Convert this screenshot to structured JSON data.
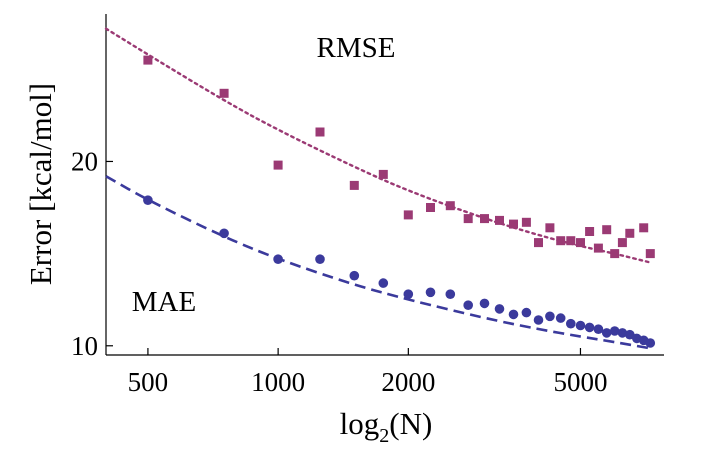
{
  "chart_data": {
    "type": "scatter",
    "xscale": "log",
    "xlim": [
      400,
      7800
    ],
    "ylim": [
      9.5,
      28
    ],
    "ylabel": "Error [kcal/mol]",
    "xlabel": {
      "prefix": "log",
      "subscript": "2",
      "suffix": "(N)"
    },
    "x_ticks": [
      {
        "value": 500,
        "label": "500"
      },
      {
        "value": 1000,
        "label": "1000"
      },
      {
        "value": 2000,
        "label": "2000"
      },
      {
        "value": 5000,
        "label": "5000"
      }
    ],
    "y_ticks": [
      {
        "value": 10,
        "label": "10"
      },
      {
        "value": 20,
        "label": "20"
      }
    ],
    "annotations": [
      {
        "text": "RMSE",
        "series": "RMSE"
      },
      {
        "text": "MAE",
        "series": "MAE"
      }
    ],
    "series": [
      {
        "name": "RMSE",
        "marker": "square",
        "color": "#9b3a74",
        "fit_style": "dotted",
        "fit_x": [
          400,
          500,
          750,
          1000,
          1500,
          2000,
          3000,
          4000,
          5000,
          6000,
          7300
        ],
        "fit_y": [
          27.2,
          25.8,
          23.3,
          21.7,
          19.7,
          18.4,
          16.9,
          16.0,
          15.4,
          15.0,
          14.5
        ],
        "x": [
          500,
          750,
          1000,
          1250,
          1500,
          1750,
          2000,
          2250,
          2500,
          2750,
          3000,
          3250,
          3500,
          3750,
          4000,
          4250,
          4500,
          4750,
          5000,
          5250,
          5500,
          5750,
          6000,
          6250,
          6500,
          7000,
          7250
        ],
        "y": [
          25.5,
          23.7,
          19.8,
          21.6,
          18.7,
          19.3,
          17.1,
          17.5,
          17.6,
          16.9,
          16.9,
          16.8,
          16.6,
          16.7,
          15.6,
          16.4,
          15.7,
          15.7,
          15.6,
          16.2,
          15.3,
          16.3,
          15.0,
          15.6,
          16.1,
          16.4,
          15.0
        ]
      },
      {
        "name": "MAE",
        "marker": "circle",
        "color": "#3b3a9c",
        "fit_style": "dashed",
        "fit_x": [
          400,
          500,
          750,
          1000,
          1500,
          2000,
          3000,
          4000,
          5000,
          6000,
          7300
        ],
        "fit_y": [
          19.2,
          17.9,
          15.9,
          14.7,
          13.3,
          12.5,
          11.5,
          10.9,
          10.5,
          10.2,
          9.85
        ],
        "x": [
          500,
          750,
          1000,
          1250,
          1500,
          1750,
          2000,
          2250,
          2500,
          2750,
          3000,
          3250,
          3500,
          3750,
          4000,
          4250,
          4500,
          4750,
          5000,
          5250,
          5500,
          5750,
          6000,
          6250,
          6500,
          6750,
          7000,
          7250
        ],
        "y": [
          17.9,
          16.1,
          14.7,
          14.7,
          13.8,
          13.4,
          12.8,
          12.9,
          12.8,
          12.2,
          12.3,
          12.0,
          11.7,
          11.8,
          11.4,
          11.6,
          11.5,
          11.2,
          11.1,
          11.0,
          10.9,
          10.7,
          10.8,
          10.7,
          10.6,
          10.4,
          10.3,
          10.15
        ]
      }
    ]
  }
}
